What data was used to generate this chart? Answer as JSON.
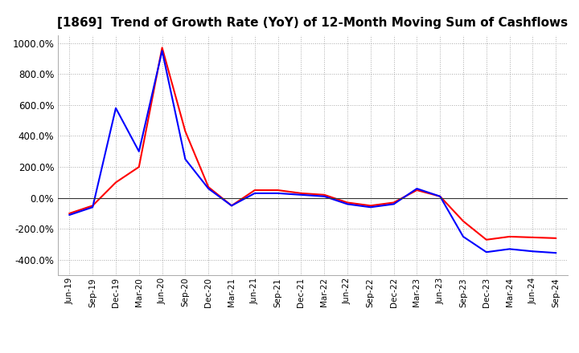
{
  "title": "[1869]  Trend of Growth Rate (YoY) of 12-Month Moving Sum of Cashflows",
  "title_fontsize": 11,
  "ylim": [
    -500,
    1050
  ],
  "yticks": [
    -400,
    -200,
    0,
    200,
    400,
    600,
    800,
    1000
  ],
  "background_color": "#ffffff",
  "grid_color": "#aaaaaa",
  "x_labels": [
    "Jun-19",
    "Sep-19",
    "Dec-19",
    "Mar-20",
    "Jun-20",
    "Sep-20",
    "Dec-20",
    "Mar-21",
    "Jun-21",
    "Sep-21",
    "Dec-21",
    "Mar-22",
    "Jun-22",
    "Sep-22",
    "Dec-22",
    "Mar-23",
    "Jun-23",
    "Sep-23",
    "Dec-23",
    "Mar-24",
    "Jun-24",
    "Sep-24"
  ],
  "operating_cashflow": [
    -100,
    -50,
    100,
    200,
    970,
    430,
    70,
    -50,
    50,
    50,
    30,
    20,
    -30,
    -50,
    -30,
    50,
    10,
    -150,
    -270,
    -250,
    -255,
    -260
  ],
  "free_cashflow": [
    -110,
    -60,
    580,
    300,
    950,
    250,
    60,
    -50,
    30,
    30,
    20,
    10,
    -40,
    -60,
    -40,
    60,
    10,
    -250,
    -350,
    -330,
    -345,
    -355
  ],
  "op_color": "#ff0000",
  "free_color": "#0000ff",
  "line_width": 1.5
}
